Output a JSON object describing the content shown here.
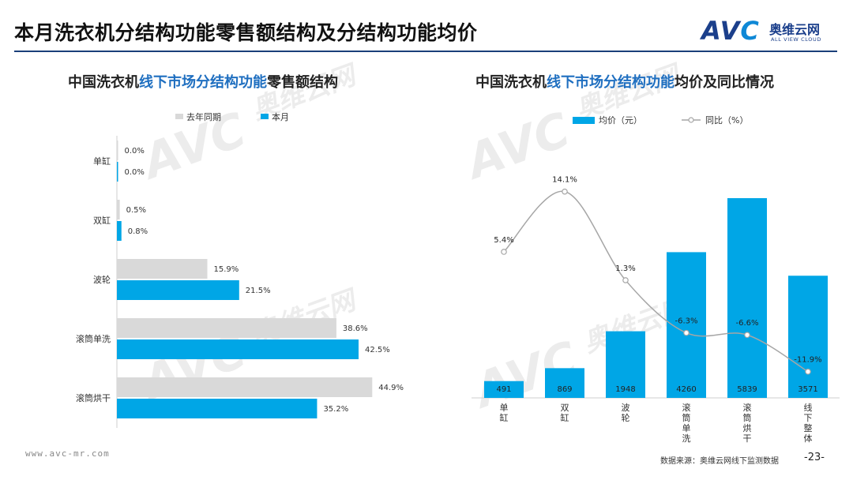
{
  "page": {
    "title": "本月洗衣机分结构功能零售额结构及分结构功能均价",
    "footer_url": "www.avc-mr.com",
    "footer_source": "数据来源：奥维云网线下监测数据",
    "page_number": "-23-"
  },
  "logo": {
    "mark_a": "AV",
    "mark_c": "C",
    "cn": "奥维云网",
    "en": "ALL VIEW CLOUD"
  },
  "watermark": {
    "mark": "AVC",
    "cn": "奥维云网",
    "en": "ALL VIEW CLOUD"
  },
  "colors": {
    "last_year": "#d9d9d9",
    "this_month": "#00a6e6",
    "line": "#a6a6a6",
    "title_rule": "#1a3f7a",
    "highlight": "#1f6fc0"
  },
  "left_title": {
    "pre": "中国洗衣机",
    "hl": "线下市场分结构功能",
    "post": "零售额结构"
  },
  "right_title": {
    "pre": "中国洗衣机",
    "hl": "线下市场分结构功能",
    "post": "均价及同比情况"
  },
  "chart_data": [
    {
      "type": "bar",
      "orientation": "horizontal",
      "categories": [
        "单缸",
        "双缸",
        "波轮",
        "滚筒单洗",
        "滚筒烘干"
      ],
      "series": [
        {
          "name": "去年同期",
          "values": [
            0.0,
            0.5,
            15.9,
            38.6,
            44.9
          ],
          "labels": [
            "0.0%",
            "0.5%",
            "15.9%",
            "38.6%",
            "44.9%"
          ],
          "color": "#d9d9d9"
        },
        {
          "name": "本月",
          "values": [
            0.0,
            0.8,
            21.5,
            42.5,
            35.2
          ],
          "labels": [
            "0.0%",
            "0.8%",
            "21.5%",
            "42.5%",
            "35.2%"
          ],
          "color": "#00a6e6"
        }
      ],
      "xlim": [
        0,
        50
      ],
      "legend_position": "top",
      "grid": false
    },
    {
      "type": "bar",
      "categories": [
        "单缸",
        "双缸",
        "波轮",
        "滚筒单洗",
        "滚筒烘干",
        "线下整体"
      ],
      "series": [
        {
          "name": "均价（元）",
          "type": "bar",
          "values": [
            491,
            869,
            1948,
            4260,
            5839,
            3571
          ],
          "color": "#00a6e6"
        },
        {
          "name": "同比（%）",
          "type": "line",
          "values": [
            5.4,
            14.1,
            1.3,
            -6.3,
            -6.6,
            -11.9
          ],
          "labels": [
            "5.4%",
            "14.1%",
            "1.3%",
            "-6.3%",
            "-6.6%",
            "-11.9%"
          ],
          "color": "#a6a6a6"
        }
      ],
      "y_bar_lim": [
        0,
        6000
      ],
      "y_line_lim": [
        -12.5,
        16
      ],
      "legend_position": "top",
      "grid": false
    }
  ]
}
